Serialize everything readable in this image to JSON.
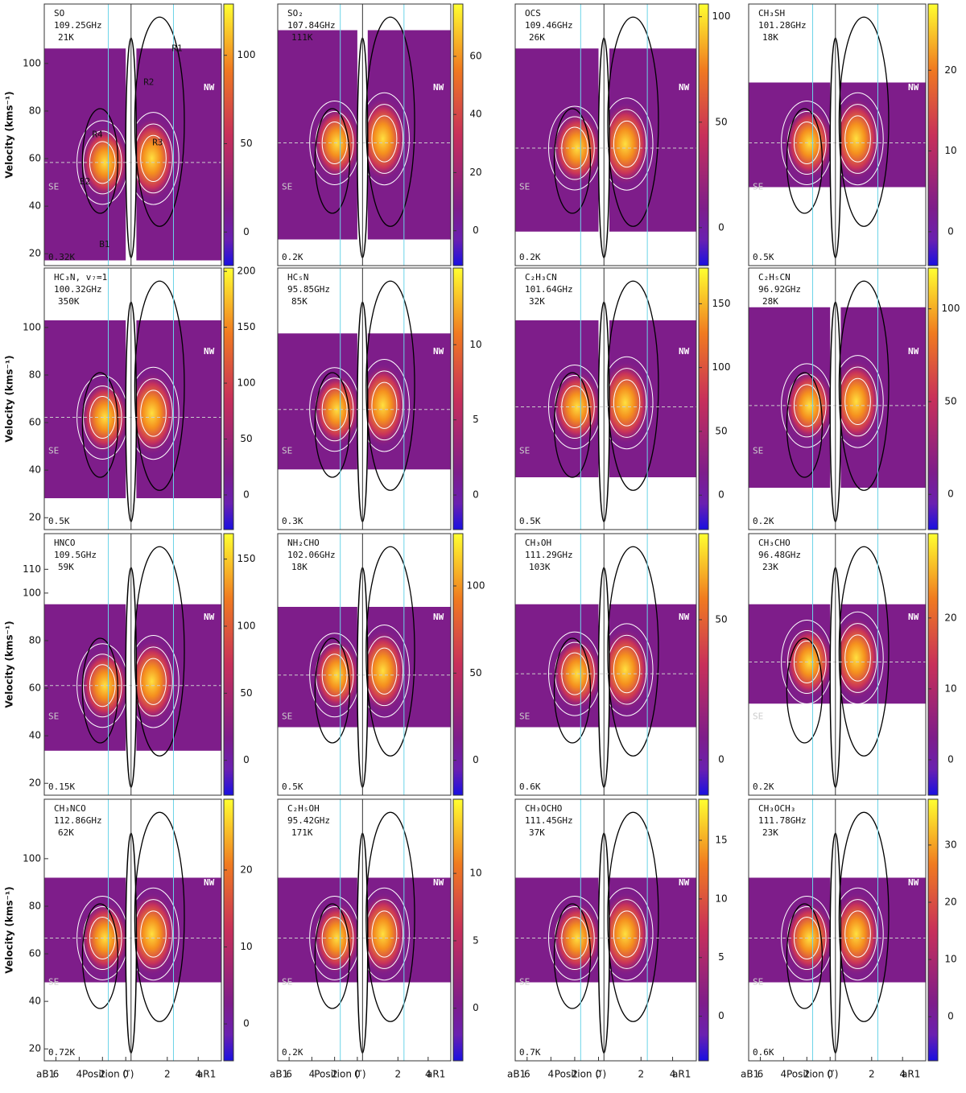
{
  "chart_data": {
    "type": "pv-diagram-grid",
    "y_axis": {
      "label": "Velocity (kms⁻¹)",
      "lim": [
        15,
        125
      ]
    },
    "x_axis": {
      "left_label": "aB1",
      "right_label": "aR1",
      "label": "Position (″)",
      "left_ticks": [
        6,
        4,
        2,
        0
      ],
      "right_ticks": [
        2,
        4
      ],
      "left_lim": [
        7,
        0
      ],
      "right_lim": [
        0,
        5.5
      ]
    },
    "rows": [
      {
        "yticks": [
          20,
          40,
          60,
          80,
          100
        ]
      },
      {
        "yticks": [
          20,
          40,
          60,
          80,
          100
        ]
      },
      {
        "yticks": [
          20,
          40,
          60,
          80,
          100,
          110
        ]
      },
      {
        "yticks": [
          20,
          40,
          60,
          80,
          100
        ]
      }
    ],
    "side_labels": {
      "se": "SE",
      "nw": "NW"
    },
    "region_labels": [
      "R1",
      "R2",
      "R3",
      "R4",
      "B1",
      "B2"
    ],
    "panels": [
      {
        "molecule": "SO",
        "frequency": "109.25GHz",
        "energy": "21K",
        "noise": "0.32K",
        "colorbar": {
          "lim": [
            -19,
            129
          ],
          "ticks": [
            0,
            50,
            100
          ]
        }
      },
      {
        "molecule": "SO₂",
        "frequency": "107.84GHz",
        "energy": "111K",
        "noise": "0.2K",
        "colorbar": {
          "lim": [
            -12,
            78
          ],
          "ticks": [
            0,
            20,
            40,
            60
          ]
        }
      },
      {
        "molecule": "OCS",
        "frequency": "109.46GHz",
        "energy": "26K",
        "noise": "0.2K",
        "colorbar": {
          "lim": [
            -18,
            106
          ],
          "ticks": [
            0,
            50,
            100
          ]
        }
      },
      {
        "molecule": "CH₃SH",
        "frequency": "101.28GHz",
        "energy": "18K",
        "noise": "0.5K",
        "colorbar": {
          "lim": [
            -4.2,
            28.2
          ],
          "ticks": [
            0,
            10,
            20
          ]
        }
      },
      {
        "molecule": "HC₃N, v₇=1",
        "frequency": "100.32GHz",
        "energy": "350K",
        "noise": "0.5K",
        "colorbar": {
          "lim": [
            -31,
            203
          ],
          "ticks": [
            0,
            50,
            100,
            150,
            200
          ]
        }
      },
      {
        "molecule": "HC₅N",
        "frequency": "95.85GHz",
        "energy": "85K",
        "noise": "0.3K",
        "colorbar": {
          "lim": [
            -2.3,
            15.1
          ],
          "ticks": [
            0,
            5,
            10
          ]
        }
      },
      {
        "molecule": "C₂H₃CN",
        "frequency": "101.64GHz",
        "energy": "32K",
        "noise": "0.5K",
        "colorbar": {
          "lim": [
            -27,
            178
          ],
          "ticks": [
            0,
            50,
            100,
            150
          ]
        }
      },
      {
        "molecule": "C₂H₅CN",
        "frequency": "96.92GHz",
        "energy": "28K",
        "noise": "0.2K",
        "colorbar": {
          "lim": [
            -19,
            122
          ],
          "ticks": [
            0,
            50,
            100
          ]
        }
      },
      {
        "molecule": "HNCO",
        "frequency": "109.5GHz",
        "energy": "59K",
        "noise": "0.15K",
        "colorbar": {
          "lim": [
            -26,
            169
          ],
          "ticks": [
            0,
            50,
            100,
            150
          ]
        }
      },
      {
        "molecule": "NH₂CHO",
        "frequency": "102.06GHz",
        "energy": "18K",
        "noise": "0.5K",
        "colorbar": {
          "lim": [
            -20,
            130
          ],
          "ticks": [
            0,
            50,
            100
          ]
        }
      },
      {
        "molecule": "CH₃OH",
        "frequency": "111.29GHz",
        "energy": "103K",
        "noise": "0.6K",
        "colorbar": {
          "lim": [
            -12.6,
            80.7
          ],
          "ticks": [
            0,
            50
          ]
        }
      },
      {
        "molecule": "CH₃CHO",
        "frequency": "96.48GHz",
        "energy": "23K",
        "noise": "0.2K",
        "colorbar": {
          "lim": [
            -5,
            31.9
          ],
          "ticks": [
            0,
            10,
            20
          ]
        }
      },
      {
        "molecule": "CH₃NCO",
        "frequency": "112.86GHz",
        "energy": "62K",
        "noise": "0.72K",
        "colorbar": {
          "lim": [
            -4.8,
            29.2
          ],
          "ticks": [
            0,
            10,
            20
          ]
        }
      },
      {
        "molecule": "C₂H₅OH",
        "frequency": "95.42GHz",
        "energy": "171K",
        "noise": "0.2K",
        "colorbar": {
          "lim": [
            -3.9,
            15.5
          ],
          "ticks": [
            0,
            5,
            10
          ]
        }
      },
      {
        "molecule": "CH₃OCHO",
        "frequency": "111.45GHz",
        "energy": "37K",
        "noise": "0.7K",
        "colorbar": {
          "lim": [
            -3.8,
            18.5
          ],
          "ticks": [
            0,
            5,
            10,
            15
          ]
        }
      },
      {
        "molecule": "CH₃OCH₃",
        "frequency": "111.78GHz",
        "energy": "23K",
        "noise": "0.6K",
        "colorbar": {
          "lim": [
            -7.7,
            38
          ],
          "ticks": [
            0,
            10,
            20,
            30
          ]
        }
      }
    ]
  }
}
